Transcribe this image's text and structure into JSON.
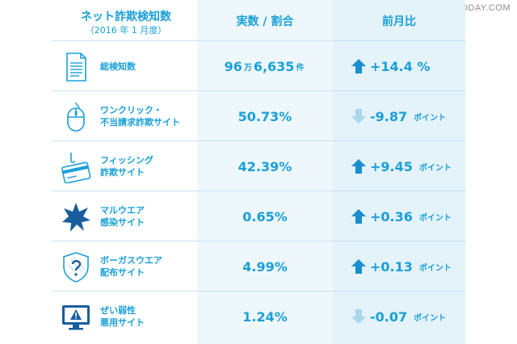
{
  "watermark": "RBBTODAY.COM",
  "header": {
    "title": "ネット詐欺検知数",
    "subtitle": "（2016 年 1 月度）",
    "col2": "実数 / 割合",
    "col3": "前月比"
  },
  "rows": [
    {
      "label1": "総検知数",
      "label2": "",
      "value_main": "96",
      "value_unit1": "万",
      "value_rest": "6,635",
      "value_unit2": "件",
      "direction": "up",
      "change": "+14.4 %",
      "change_unit": "",
      "icon": "document-icon"
    },
    {
      "label1": "ワンクリック・",
      "label2": "不当請求詐欺サイト",
      "value_main": "50.73%",
      "value_unit1": "",
      "value_rest": "",
      "value_unit2": "",
      "direction": "down",
      "change": "-9.87",
      "change_unit": "ポイント",
      "icon": "mouse-icon"
    },
    {
      "label1": "フィッシング",
      "label2": "詐欺サイト",
      "value_main": "42.39%",
      "value_unit1": "",
      "value_rest": "",
      "value_unit2": "",
      "direction": "up",
      "change": "+9.45",
      "change_unit": "ポイント",
      "icon": "card-hook-icon"
    },
    {
      "label1": "マルウエア",
      "label2": "感染サイト",
      "value_main": "0.65%",
      "value_unit1": "",
      "value_rest": "",
      "value_unit2": "",
      "direction": "up",
      "change": "+0.36",
      "change_unit": "ポイント",
      "icon": "virus-burst-icon"
    },
    {
      "label1": "ボーガスウエア",
      "label2": "配布サイト",
      "value_main": "4.99%",
      "value_unit1": "",
      "value_rest": "",
      "value_unit2": "",
      "direction": "up",
      "change": "+0.13",
      "change_unit": "ポイント",
      "icon": "shield-question-icon"
    },
    {
      "label1": "ぜい弱性",
      "label2": "悪用サイト",
      "value_main": "1.24%",
      "value_unit1": "",
      "value_rest": "",
      "value_unit2": "",
      "direction": "down",
      "change": "-0.07",
      "change_unit": "ポイント",
      "icon": "monitor-warning-icon"
    }
  ],
  "colors": {
    "accent": "#1aa0d8",
    "up_arrow": "#1a8fd0",
    "down_arrow": "#a8d8ea"
  }
}
